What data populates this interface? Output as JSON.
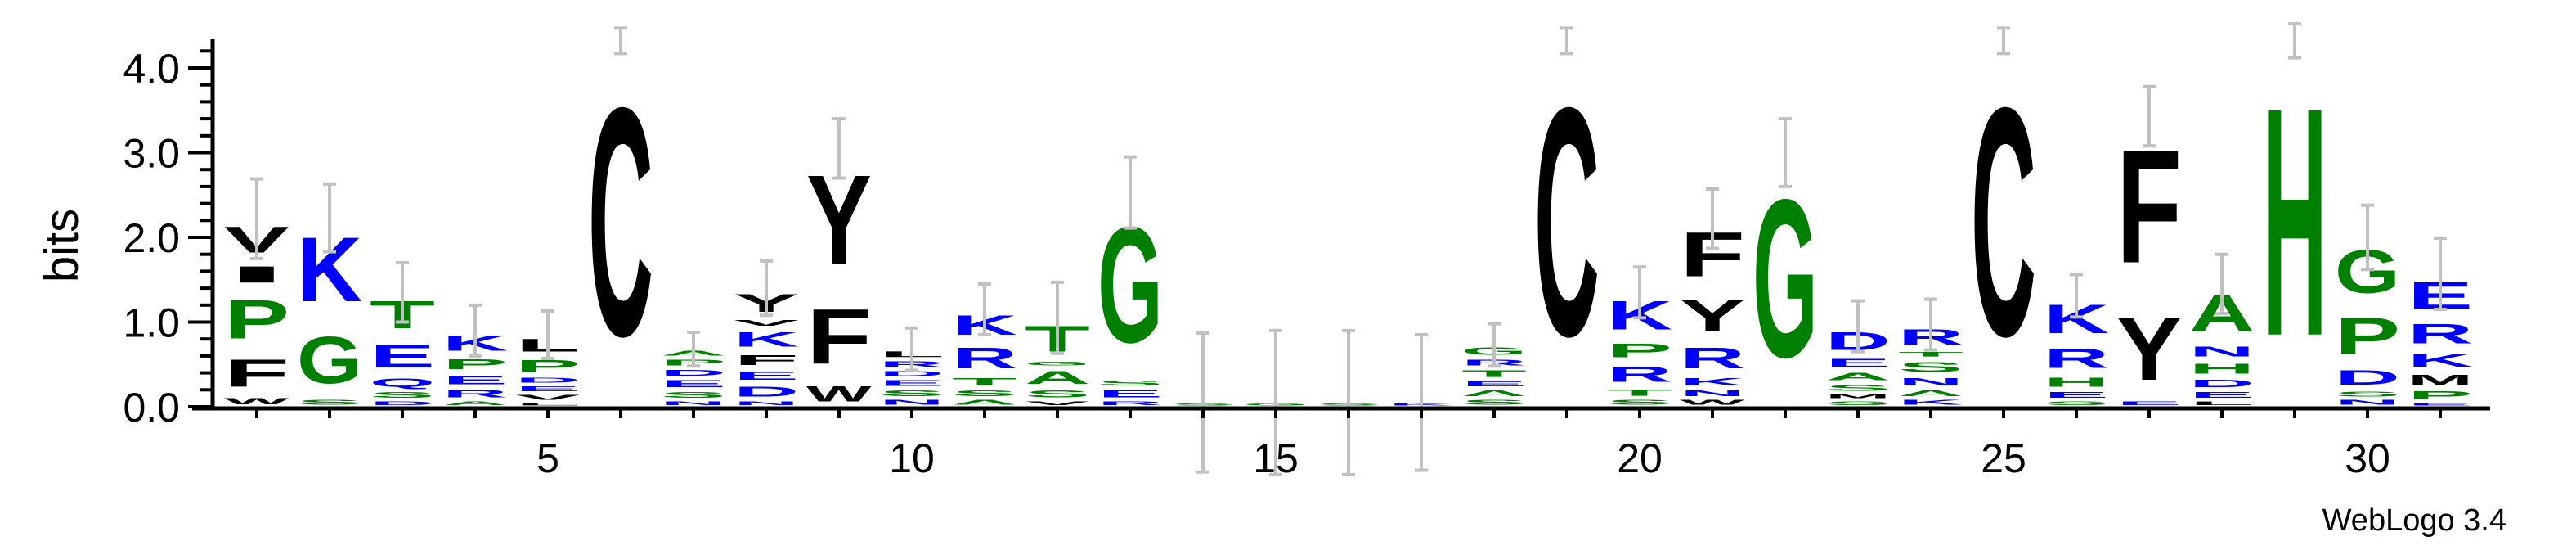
{
  "chart_data": {
    "type": "sequence-logo",
    "ylabel": "bits",
    "ylim": [
      0,
      4.32
    ],
    "yticks": [
      "0.0",
      "1.0",
      "2.0",
      "3.0",
      "4.0"
    ],
    "xticks": [
      "5",
      "10",
      "15",
      "20",
      "25",
      "30"
    ],
    "footer": "WebLogo 3.4",
    "colors": {
      "hydrophobic": "#000000",
      "polar": "#008000",
      "charged": "#0000ff",
      "errorbar": "#c0c0c0"
    },
    "letter_colors": {
      "A": "#008000",
      "C": "#000000",
      "D": "#0000ff",
      "E": "#0000ff",
      "F": "#000000",
      "G": "#008000",
      "H": "#008000",
      "I": "#000000",
      "K": "#0000ff",
      "L": "#000000",
      "M": "#000000",
      "N": "#0000ff",
      "P": "#008000",
      "Q": "#0000ff",
      "R": "#0000ff",
      "S": "#008000",
      "T": "#008000",
      "V": "#000000",
      "W": "#000000",
      "Y": "#000000"
    },
    "positions": [
      {
        "pos": 1,
        "err": 0.47,
        "stack": [
          [
            "W",
            0.13
          ],
          [
            "F",
            0.53
          ],
          [
            "P",
            0.74
          ],
          [
            "I",
            0.32
          ],
          [
            "V",
            0.5
          ]
        ]
      },
      {
        "pos": 2,
        "err": 0.4,
        "stack": [
          [
            "S",
            0.1
          ],
          [
            "G",
            0.9
          ],
          [
            "K",
            1.23
          ]
        ]
      },
      {
        "pos": 3,
        "err": 0.35,
        "stack": [
          [
            "D",
            0.08
          ],
          [
            "S",
            0.12
          ],
          [
            "Q",
            0.17
          ],
          [
            "E",
            0.45
          ],
          [
            "T",
            0.53
          ]
        ]
      },
      {
        "pos": 4,
        "err": 0.3,
        "stack": [
          [
            "A",
            0.08
          ],
          [
            "R",
            0.15
          ],
          [
            "E",
            0.17
          ],
          [
            "P",
            0.2
          ],
          [
            "K",
            0.3
          ]
        ]
      },
      {
        "pos": 5,
        "err": 0.28,
        "stack": [
          [
            "L",
            0.06
          ],
          [
            "V",
            0.1
          ],
          [
            "E",
            0.1
          ],
          [
            "D",
            0.1
          ],
          [
            "P",
            0.24
          ],
          [
            "L",
            0.25
          ]
        ]
      },
      {
        "pos": 6,
        "err": 0.15,
        "stack": [
          [
            "C",
            4.32
          ]
        ]
      },
      {
        "pos": 7,
        "err": 0.2,
        "stack": [
          [
            "N",
            0.08
          ],
          [
            "S",
            0.12
          ],
          [
            "E",
            0.14
          ],
          [
            "D",
            0.12
          ],
          [
            "P",
            0.12
          ],
          [
            "A",
            0.1
          ]
        ]
      },
      {
        "pos": 8,
        "err": 0.32,
        "stack": [
          [
            "N",
            0.08
          ],
          [
            "D",
            0.2
          ],
          [
            "E",
            0.17
          ],
          [
            "F",
            0.2
          ],
          [
            "K",
            0.28
          ],
          [
            "V",
            0.12
          ],
          [
            "Y",
            0.35
          ]
        ]
      },
      {
        "pos": 9,
        "err": 0.35,
        "stack": [
          [
            "W",
            0.3
          ],
          [
            "F",
            1.05
          ],
          [
            "Y",
            1.7
          ]
        ]
      },
      {
        "pos": 10,
        "err": 0.25,
        "stack": [
          [
            "N",
            0.1
          ],
          [
            "S",
            0.12
          ],
          [
            "E",
            0.12
          ],
          [
            "D",
            0.1
          ],
          [
            "R",
            0.12
          ],
          [
            "L",
            0.12
          ]
        ]
      },
      {
        "pos": 11,
        "err": 0.3,
        "stack": [
          [
            "A",
            0.1
          ],
          [
            "S",
            0.12
          ],
          [
            "T",
            0.15
          ],
          [
            "R",
            0.4
          ],
          [
            "K",
            0.38
          ]
        ]
      },
      {
        "pos": 12,
        "err": 0.42,
        "stack": [
          [
            "V",
            0.08
          ],
          [
            "S",
            0.14
          ],
          [
            "A",
            0.25
          ],
          [
            "G",
            0.08
          ],
          [
            "T",
            0.5
          ]
        ]
      },
      {
        "pos": 13,
        "err": 0.42,
        "stack": [
          [
            "R",
            0.08
          ],
          [
            "E",
            0.15
          ],
          [
            "S",
            0.1
          ],
          [
            "G",
            2.2
          ]
        ]
      },
      {
        "pos": 14,
        "err": 0.82,
        "stack": [
          [
            "S",
            0.05
          ]
        ]
      },
      {
        "pos": 15,
        "err": 0.85,
        "stack": [
          [
            "G",
            0.05
          ]
        ]
      },
      {
        "pos": 16,
        "err": 0.85,
        "stack": [
          [
            "S",
            0.05
          ]
        ]
      },
      {
        "pos": 17,
        "err": 0.8,
        "stack": [
          [
            "K",
            0.05
          ]
        ]
      },
      {
        "pos": 18,
        "err": 0.25,
        "stack": [
          [
            "S",
            0.1
          ],
          [
            "A",
            0.12
          ],
          [
            "E",
            0.1
          ],
          [
            "T",
            0.14
          ],
          [
            "R",
            0.12
          ],
          [
            "G",
            0.15
          ]
        ]
      },
      {
        "pos": 19,
        "err": 0.15,
        "stack": [
          [
            "C",
            4.32
          ]
        ]
      },
      {
        "pos": 20,
        "err": 0.3,
        "stack": [
          [
            "S",
            0.1
          ],
          [
            "T",
            0.13
          ],
          [
            "R",
            0.3
          ],
          [
            "P",
            0.27
          ],
          [
            "K",
            0.55
          ]
        ]
      },
      {
        "pos": 21,
        "err": 0.35,
        "stack": [
          [
            "W",
            0.1
          ],
          [
            "N",
            0.12
          ],
          [
            "K",
            0.15
          ],
          [
            "R",
            0.4
          ],
          [
            "Y",
            0.6
          ],
          [
            "F",
            0.85
          ]
        ]
      },
      {
        "pos": 22,
        "err": 0.4,
        "stack": [
          [
            "G",
            3.0
          ]
        ]
      },
      {
        "pos": 23,
        "err": 0.3,
        "stack": [
          [
            "S",
            0.08
          ],
          [
            "M",
            0.08
          ],
          [
            "S",
            0.12
          ],
          [
            "A",
            0.15
          ],
          [
            "E",
            0.17
          ],
          [
            "D",
            0.35
          ]
        ]
      },
      {
        "pos": 24,
        "err": 0.3,
        "stack": [
          [
            "K",
            0.1
          ],
          [
            "A",
            0.12
          ],
          [
            "N",
            0.15
          ],
          [
            "S",
            0.2
          ],
          [
            "T",
            0.1
          ],
          [
            "R",
            0.3
          ]
        ]
      },
      {
        "pos": 25,
        "err": 0.15,
        "stack": [
          [
            "C",
            4.32
          ]
        ]
      },
      {
        "pos": 26,
        "err": 0.25,
        "stack": [
          [
            "S",
            0.08
          ],
          [
            "E",
            0.12
          ],
          [
            "H",
            0.18
          ],
          [
            "R",
            0.38
          ],
          [
            "K",
            0.55
          ]
        ]
      },
      {
        "pos": 27,
        "err": 0.35,
        "stack": [
          [
            "E",
            0.08
          ],
          [
            "Y",
            1.2
          ],
          [
            "F",
            2.15
          ]
        ]
      },
      {
        "pos": 28,
        "err": 0.35,
        "stack": [
          [
            "L",
            0.08
          ],
          [
            "E",
            0.12
          ],
          [
            "D",
            0.15
          ],
          [
            "H",
            0.2
          ],
          [
            "N",
            0.2
          ],
          [
            "A",
            0.7
          ]
        ]
      },
      {
        "pos": 29,
        "err": 0.2,
        "stack": [
          [
            "H",
            4.32
          ]
        ]
      },
      {
        "pos": 30,
        "err": 0.38,
        "stack": [
          [
            "N",
            0.1
          ],
          [
            "S",
            0.1
          ],
          [
            "D",
            0.28
          ],
          [
            "P",
            0.7
          ],
          [
            "G",
            0.82
          ]
        ]
      },
      {
        "pos": 31,
        "err": 0.42,
        "stack": [
          [
            "E",
            0.05
          ],
          [
            "P",
            0.17
          ],
          [
            "M",
            0.2
          ],
          [
            "K",
            0.25
          ],
          [
            "R",
            0.38
          ],
          [
            "E",
            0.52
          ]
        ]
      }
    ]
  }
}
